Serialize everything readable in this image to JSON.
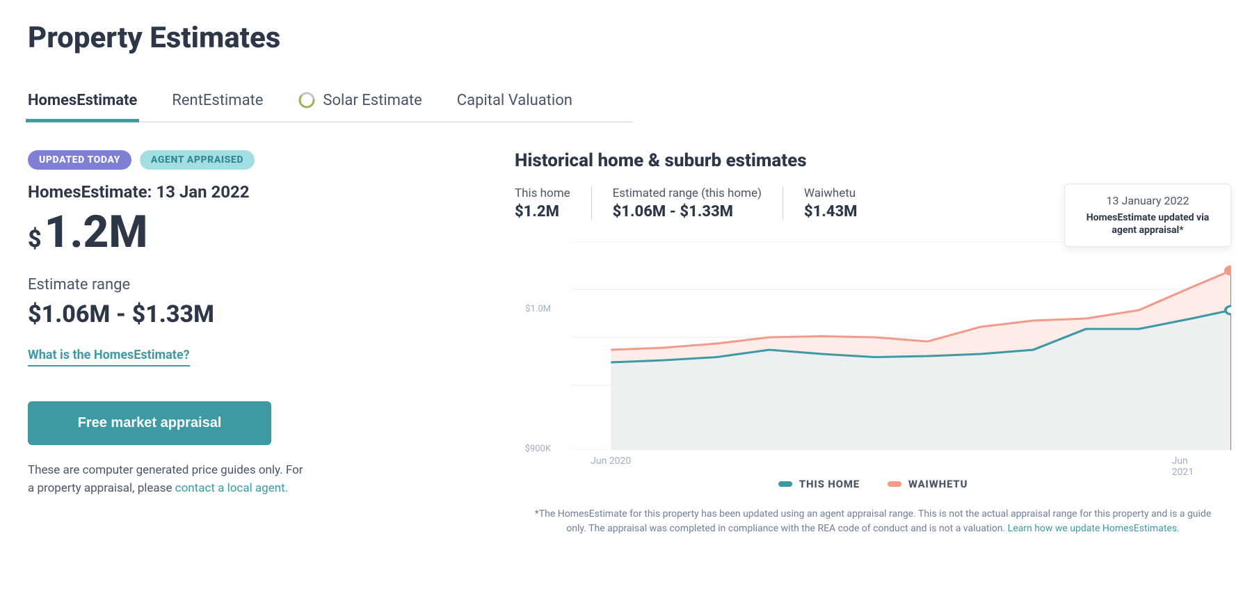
{
  "page_title": "Property Estimates",
  "tabs": [
    {
      "id": "homes",
      "label": "HomesEstimate",
      "active": true
    },
    {
      "id": "rent",
      "label": "RentEstimate",
      "active": false
    },
    {
      "id": "solar",
      "label": "Solar Estimate",
      "active": false,
      "has_icon": true
    },
    {
      "id": "capital",
      "label": "Capital Valuation",
      "active": false
    }
  ],
  "badges": {
    "updated": "UPDATED TODAY",
    "appraised": "AGENT APPRAISED"
  },
  "estimate": {
    "date_line": "HomesEstimate: 13 Jan 2022",
    "currency": "$",
    "value": "1.2M",
    "range_label": "Estimate range",
    "range_value": "$1.06M - $1.33M",
    "help_link": "What is the HomesEstimate?"
  },
  "cta": "Free market appraisal",
  "disclaimer_pre": "These are computer generated price guides only. For a property appraisal, please ",
  "disclaimer_link": "contact a local agent.",
  "chart": {
    "title": "Historical home & suburb estimates",
    "stats": [
      {
        "label": "This home",
        "value": "$1.2M"
      },
      {
        "label": "Estimated range (this home)",
        "value": "$1.06M - $1.33M"
      },
      {
        "label": "Waiwhetu",
        "value": "$1.43M"
      }
    ],
    "tooltip": {
      "date": "13 January 2022",
      "text": "HomesEstimate updated via agent appraisal*"
    },
    "type": "area",
    "x_axis": {
      "labels": [
        "Jun 2020",
        "Jun 2021"
      ],
      "positions": [
        0.06,
        0.94
      ]
    },
    "y_axis": {
      "labels": [
        "$1.0M",
        "$900K"
      ],
      "positions": [
        0.33,
        1.0
      ],
      "gridlines": [
        0.0,
        0.23,
        0.46,
        0.69,
        1.0
      ]
    },
    "series": [
      {
        "name": "WAIWHETU",
        "color_line": "#f29b8b",
        "color_fill": "#fdece8",
        "marker_end": {
          "fill": "#f29b8b",
          "stroke": "#f29b8b"
        },
        "points": [
          [
            0.06,
            0.52
          ],
          [
            0.14,
            0.51
          ],
          [
            0.22,
            0.49
          ],
          [
            0.3,
            0.46
          ],
          [
            0.38,
            0.455
          ],
          [
            0.46,
            0.46
          ],
          [
            0.54,
            0.48
          ],
          [
            0.62,
            0.41
          ],
          [
            0.7,
            0.38
          ],
          [
            0.78,
            0.37
          ],
          [
            0.86,
            0.33
          ],
          [
            0.94,
            0.22
          ],
          [
            1.0,
            0.14
          ]
        ]
      },
      {
        "name": "THIS HOME",
        "color_line": "#3d9aa4",
        "color_fill": "#edf0f1",
        "marker_end": {
          "fill": "#ffffff",
          "stroke": "#3d9aa4"
        },
        "points": [
          [
            0.06,
            0.58
          ],
          [
            0.14,
            0.57
          ],
          [
            0.22,
            0.555
          ],
          [
            0.3,
            0.52
          ],
          [
            0.38,
            0.54
          ],
          [
            0.46,
            0.555
          ],
          [
            0.54,
            0.55
          ],
          [
            0.62,
            0.54
          ],
          [
            0.7,
            0.52
          ],
          [
            0.78,
            0.42
          ],
          [
            0.86,
            0.42
          ],
          [
            0.94,
            0.37
          ],
          [
            1.0,
            0.33
          ]
        ]
      }
    ],
    "vertical_line_x": 1.0,
    "legend": [
      {
        "label": "THIS HOME",
        "color": "#3d9aa4"
      },
      {
        "label": "WAIWHETU",
        "color": "#f29b8b"
      }
    ],
    "footnote_pre": "*The HomesEstimate for this property has been updated using an agent appraisal range. This is not the actual appraisal range for this property and is a guide only. The appraisal was completed in compliance with the REA code of conduct and is not a valuation. ",
    "footnote_link": "Learn how we update HomesEstimates."
  },
  "colors": {
    "teal": "#3d9aa4",
    "coral": "#f29b8b",
    "purple": "#7f7fd5",
    "light_teal": "#a4dde2",
    "text_primary": "#2d3748",
    "text_secondary": "#4a5568",
    "text_muted": "#a0aec0",
    "grid": "#e6e9ec"
  }
}
